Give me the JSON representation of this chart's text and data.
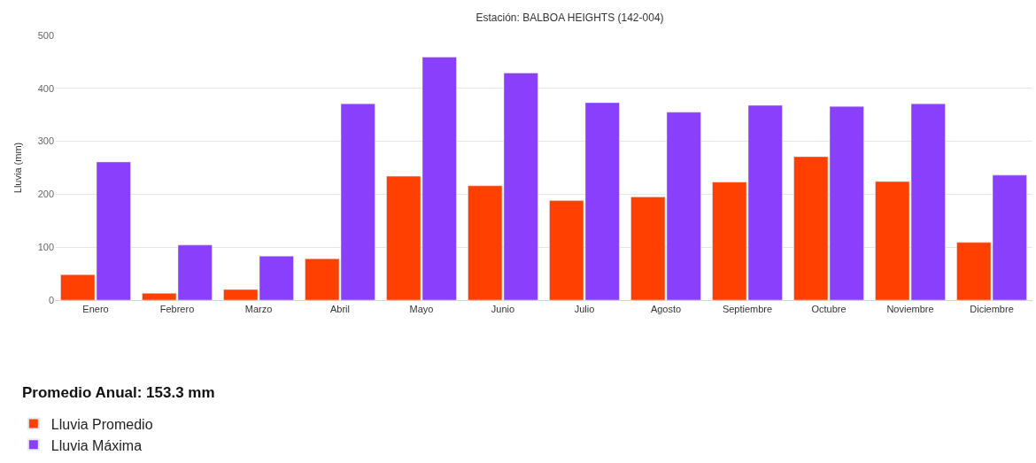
{
  "chart_data": {
    "type": "bar",
    "title": "Estación: BALBOA HEIGHTS (142-004)",
    "ylabel": "Lluvia (mm)",
    "categories": [
      "Enero",
      "Febrero",
      "Marzo",
      "Abril",
      "Mayo",
      "Junio",
      "Julio",
      "Agosto",
      "Septiembre",
      "Octubre",
      "Noviembre",
      "Diciembre"
    ],
    "series": [
      {
        "name": "Lluvia Promedio",
        "color": "#ff4000",
        "values": [
          48,
          13,
          20,
          78,
          234,
          216,
          188,
          195,
          223,
          271,
          224,
          109
        ]
      },
      {
        "name": "Lluvia Máxima",
        "color": "#8a3ffc",
        "values": [
          261,
          104,
          83,
          371,
          459,
          429,
          373,
          355,
          368,
          366,
          371,
          236
        ]
      }
    ],
    "ylim": [
      0,
      500
    ],
    "yticks": [
      0,
      100,
      200,
      300,
      400,
      500
    ],
    "grid": "y",
    "legend": "bottom left",
    "annotations": [
      "Promedio Anual: 153.3 mm"
    ]
  }
}
